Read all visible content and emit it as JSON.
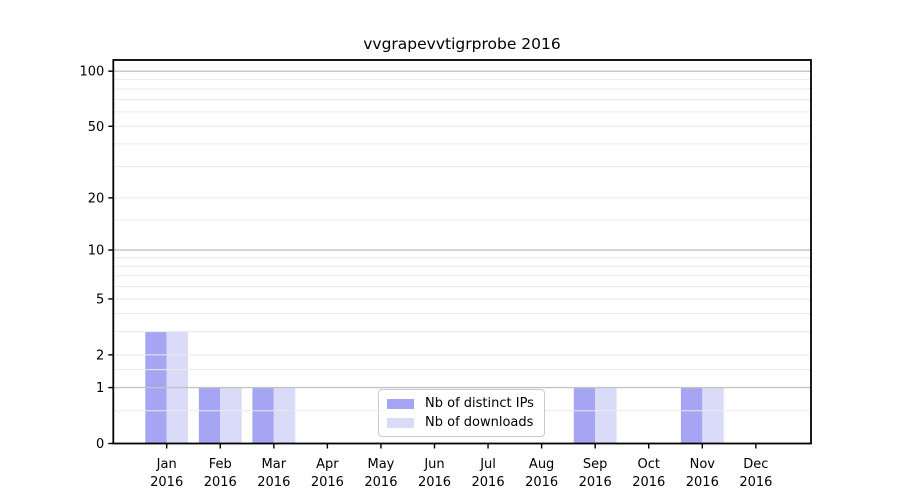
{
  "chart_data": {
    "type": "bar",
    "title": "vvgrapevvtigrprobe 2016",
    "categories": [
      "Jan",
      "Feb",
      "Mar",
      "Apr",
      "May",
      "Jun",
      "Jul",
      "Aug",
      "Sep",
      "Oct",
      "Nov",
      "Dec"
    ],
    "category_sublabel": "2016",
    "series": [
      {
        "name": "Nb of distinct IPs",
        "color": "#a5a5f3",
        "values": [
          3,
          1,
          1,
          0,
          0,
          0,
          0,
          0,
          1,
          0,
          1,
          0
        ]
      },
      {
        "name": "Nb of downloads",
        "color": "#dadaf9",
        "values": [
          3,
          1,
          1,
          0,
          0,
          0,
          0,
          0,
          1,
          0,
          1,
          0
        ]
      }
    ],
    "yscale": "log1p",
    "ylim": [
      0,
      115
    ],
    "yticks": [
      0,
      1,
      2,
      5,
      10,
      20,
      50,
      100
    ],
    "major_gridlines": [
      1,
      10,
      100
    ],
    "minor_gridlines": [
      0.5,
      1.5,
      2,
      3,
      4,
      5,
      6,
      7,
      8,
      9,
      15,
      20,
      30,
      40,
      50,
      60,
      70,
      80,
      90
    ],
    "legend": {
      "position": "lower center",
      "labels": [
        "Nb of distinct IPs",
        "Nb of downloads"
      ]
    },
    "colors": {
      "major_grid": "#c3c3c3",
      "minor_grid": "#eaeaea",
      "spine": "#000000",
      "text": "#000000",
      "background": "#ffffff"
    }
  }
}
